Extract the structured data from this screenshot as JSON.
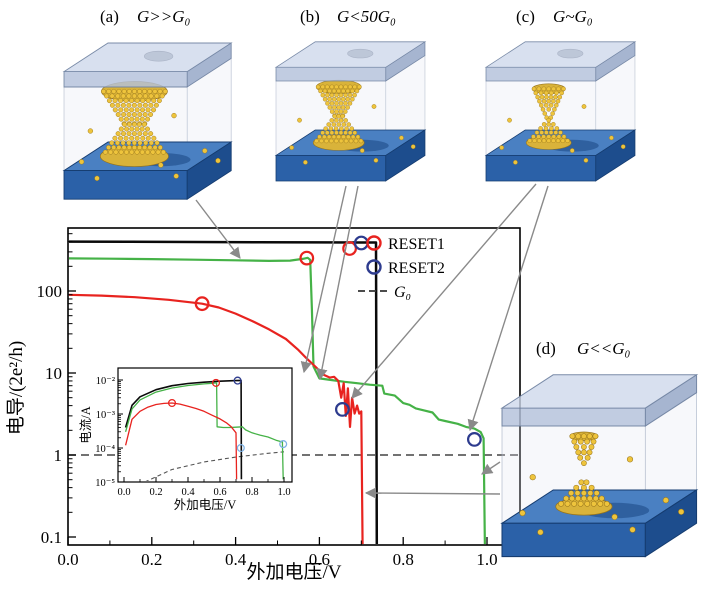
{
  "panels": {
    "a": {
      "label": "(a)",
      "formula": "G>>G₀"
    },
    "b": {
      "label": "(b)",
      "formula": "G<50G₀"
    },
    "c": {
      "label": "(c)",
      "formula": "G~G₀"
    },
    "d": {
      "label": "(d)",
      "formula": "G<<G₀"
    }
  },
  "figure": {
    "colors": {
      "gold": "#eec43c",
      "gold_edge": "#96731a",
      "slab_top": "#4a80c2",
      "slab_front": "#2b61a8",
      "slab_side": "#1d4d8d",
      "arrow_gray": "#8a8a8a"
    },
    "arrows": [
      [
        196,
        200,
        240,
        258
      ],
      [
        346,
        186,
        304,
        372
      ],
      [
        358,
        186,
        320,
        379
      ],
      [
        536,
        184,
        352,
        398
      ],
      [
        548,
        186,
        470,
        430
      ],
      [
        500,
        462,
        482,
        474
      ],
      [
        500,
        494,
        366,
        493
      ]
    ]
  },
  "chart_data": {
    "type": "line",
    "xlabel": "外加电压/V",
    "ylabel": "电导/(2e²/h)",
    "yscale": "log",
    "xlim": [
      0,
      1.08
    ],
    "ylim": [
      0.07,
      580
    ],
    "x_ticks": [
      "0.0",
      "0.2",
      "0.4",
      "0.6",
      "0.8",
      "1.0"
    ],
    "x_tick_values": [
      0,
      0.2,
      0.4,
      0.6,
      0.8,
      1.0
    ],
    "y_ticks": [
      "0.1",
      "1",
      "10",
      "100"
    ],
    "y_tick_values": [
      0.1,
      1,
      10,
      100
    ],
    "legend": [
      {
        "label": "RESET1",
        "marker": "circle",
        "color": "#e8231f",
        "italic": false
      },
      {
        "label": "RESET2",
        "marker": "circle",
        "color": "#2d3b8e",
        "italic": false
      },
      {
        "label": "G₀",
        "marker": "dashed-line",
        "color": "#333333",
        "italic": true
      }
    ],
    "series": [
      {
        "name": "G0-reference",
        "color": "#444444",
        "dash": true,
        "width": 1.6,
        "points": [
          [
            0,
            1
          ],
          [
            1.08,
            1
          ]
        ]
      },
      {
        "name": "SET-black",
        "color": "#0a0a0a",
        "width": 2.5,
        "points": [
          [
            0,
            400
          ],
          [
            0.15,
            398
          ],
          [
            0.3,
            396
          ],
          [
            0.45,
            394
          ],
          [
            0.6,
            392
          ],
          [
            0.7,
            390
          ],
          [
            0.735,
            390
          ],
          [
            0.737,
            0.075
          ]
        ]
      },
      {
        "name": "RESET2-green",
        "color": "#45b247",
        "width": 2.2,
        "points": [
          [
            0,
            250
          ],
          [
            0.1,
            248
          ],
          [
            0.2,
            245
          ],
          [
            0.3,
            241
          ],
          [
            0.4,
            237
          ],
          [
            0.48,
            233
          ],
          [
            0.53,
            235
          ],
          [
            0.56,
            246
          ],
          [
            0.572,
            254
          ],
          [
            0.578,
            240
          ],
          [
            0.582,
            60
          ],
          [
            0.586,
            12
          ],
          [
            0.6,
            8.6
          ],
          [
            0.63,
            8.2
          ],
          [
            0.66,
            7.8
          ],
          [
            0.69,
            7.5
          ],
          [
            0.72,
            7.2
          ],
          [
            0.75,
            7.0
          ],
          [
            0.755,
            5.6
          ],
          [
            0.78,
            5.3
          ],
          [
            0.8,
            4.3
          ],
          [
            0.815,
            4.1
          ],
          [
            0.83,
            3.7
          ],
          [
            0.85,
            3.5
          ],
          [
            0.87,
            3.3
          ],
          [
            0.885,
            2.7
          ],
          [
            0.9,
            2.6
          ],
          [
            0.93,
            2.4
          ],
          [
            0.95,
            2.2
          ],
          [
            0.97,
            2.1
          ],
          [
            0.985,
            1.9
          ],
          [
            0.992,
            1.6
          ],
          [
            0.995,
            0.075
          ]
        ]
      },
      {
        "name": "RESET1-red",
        "color": "#e8231f",
        "width": 2.2,
        "points": [
          [
            0,
            90
          ],
          [
            0.08,
            88
          ],
          [
            0.16,
            84
          ],
          [
            0.24,
            78
          ],
          [
            0.3,
            72
          ],
          [
            0.32,
            70
          ],
          [
            0.36,
            63
          ],
          [
            0.4,
            53
          ],
          [
            0.44,
            43
          ],
          [
            0.48,
            34
          ],
          [
            0.52,
            26
          ],
          [
            0.55,
            19
          ],
          [
            0.57,
            15
          ],
          [
            0.59,
            12
          ],
          [
            0.61,
            9.5
          ],
          [
            0.625,
            8.8
          ],
          [
            0.635,
            9.0
          ],
          [
            0.645,
            8.0
          ],
          [
            0.652,
            5.0
          ],
          [
            0.658,
            7.5
          ],
          [
            0.663,
            3.0
          ],
          [
            0.668,
            6.5
          ],
          [
            0.673,
            2.2
          ],
          [
            0.678,
            5.0
          ],
          [
            0.684,
            3.2
          ],
          [
            0.69,
            4.0
          ],
          [
            0.695,
            3.2
          ],
          [
            0.7,
            3.4
          ],
          [
            0.703,
            0.075
          ]
        ]
      }
    ],
    "markers": [
      {
        "x": 0.32,
        "y": 70,
        "color": "#e8231f"
      },
      {
        "x": 0.57,
        "y": 252,
        "color": "#e8231f"
      },
      {
        "x": 0.672,
        "y": 330,
        "color": "#e8231f"
      },
      {
        "x": 0.7,
        "y": 385,
        "color": "#2d3b8e"
      },
      {
        "x": 0.655,
        "y": 3.6,
        "color": "#2d3b8e"
      },
      {
        "x": 0.97,
        "y": 1.55,
        "color": "#2d3b8e"
      }
    ],
    "inset": {
      "xlabel": "外加电压/V",
      "ylabel": "电流/A",
      "yscale": "log",
      "x_ticks": [
        "0.0",
        "0.2",
        "0.4",
        "0.6",
        "0.8",
        "1.0"
      ],
      "x_tick_values": [
        0,
        0.2,
        0.4,
        0.6,
        0.8,
        1.0
      ],
      "y_ticks": [
        "10⁻²",
        "10⁻³",
        "10⁻⁴",
        "10⁻⁵"
      ],
      "y_tick_values": [
        0.01,
        0.001,
        0.0001,
        1e-05
      ],
      "series": [
        {
          "name": "G0-reference",
          "color": "#555555",
          "dash": true,
          "width": 1.1,
          "points": [
            [
              0.13,
              1e-05
            ],
            [
              0.3,
              2.33e-05
            ],
            [
              0.5,
              3.88e-05
            ],
            [
              0.7,
              5.43e-05
            ],
            [
              0.9,
              6.98e-05
            ],
            [
              1.0,
              7.75e-05
            ]
          ]
        },
        {
          "name": "SET-black",
          "color": "#0a0a0a",
          "width": 1.6,
          "points": [
            [
              0.01,
              0.0004
            ],
            [
              0.05,
              0.0018
            ],
            [
              0.1,
              0.0032
            ],
            [
              0.2,
              0.0052
            ],
            [
              0.3,
              0.0068
            ],
            [
              0.4,
              0.0079
            ],
            [
              0.5,
              0.0086
            ],
            [
              0.6,
              0.0092
            ],
            [
              0.7,
              0.0096
            ],
            [
              0.732,
              0.0097
            ],
            [
              0.734,
              1.2e-05
            ]
          ]
        },
        {
          "name": "RESET2-green",
          "color": "#45b247",
          "width": 1.3,
          "points": [
            [
              0.01,
              0.0003
            ],
            [
              0.05,
              0.0014
            ],
            [
              0.1,
              0.0026
            ],
            [
              0.2,
              0.0044
            ],
            [
              0.3,
              0.0058
            ],
            [
              0.4,
              0.0069
            ],
            [
              0.5,
              0.0077
            ],
            [
              0.55,
              0.008
            ],
            [
              0.575,
              0.0082
            ],
            [
              0.579,
              0.0082
            ],
            [
              0.582,
              0.00042
            ],
            [
              0.62,
              0.0004
            ],
            [
              0.66,
              0.0004
            ],
            [
              0.7,
              0.00041
            ],
            [
              0.74,
              0.00042
            ],
            [
              0.76,
              0.00034
            ],
            [
              0.8,
              0.00028
            ],
            [
              0.85,
              0.00024
            ],
            [
              0.9,
              0.00021
            ],
            [
              0.95,
              0.00017
            ],
            [
              0.99,
              0.00015
            ],
            [
              0.995,
              1.2e-05
            ]
          ]
        },
        {
          "name": "RESET1-red",
          "color": "#e8231f",
          "width": 1.3,
          "points": [
            [
              0.01,
              0.00012
            ],
            [
              0.05,
              0.0007
            ],
            [
              0.1,
              0.0012
            ],
            [
              0.15,
              0.0016
            ],
            [
              0.2,
              0.0019
            ],
            [
              0.25,
              0.00205
            ],
            [
              0.3,
              0.0021
            ],
            [
              0.35,
              0.00195
            ],
            [
              0.4,
              0.0017
            ],
            [
              0.45,
              0.00145
            ],
            [
              0.5,
              0.0012
            ],
            [
              0.55,
              0.00092
            ],
            [
              0.6,
              0.00072
            ],
            [
              0.64,
              0.00055
            ],
            [
              0.67,
              0.00042
            ],
            [
              0.69,
              0.00032
            ],
            [
              0.7,
              0.00028
            ],
            [
              0.704,
              1.2e-05
            ]
          ]
        }
      ],
      "markers": [
        {
          "x": 0.3,
          "y": 0.0021,
          "color": "#e8231f"
        },
        {
          "x": 0.575,
          "y": 0.0082,
          "color": "#e8231f"
        },
        {
          "x": 0.71,
          "y": 0.0096,
          "color": "#2d3b8e"
        },
        {
          "x": 0.73,
          "y": 0.0001,
          "color": "#7fb2e5"
        },
        {
          "x": 0.995,
          "y": 0.00013,
          "color": "#7fb2e5"
        }
      ]
    }
  }
}
